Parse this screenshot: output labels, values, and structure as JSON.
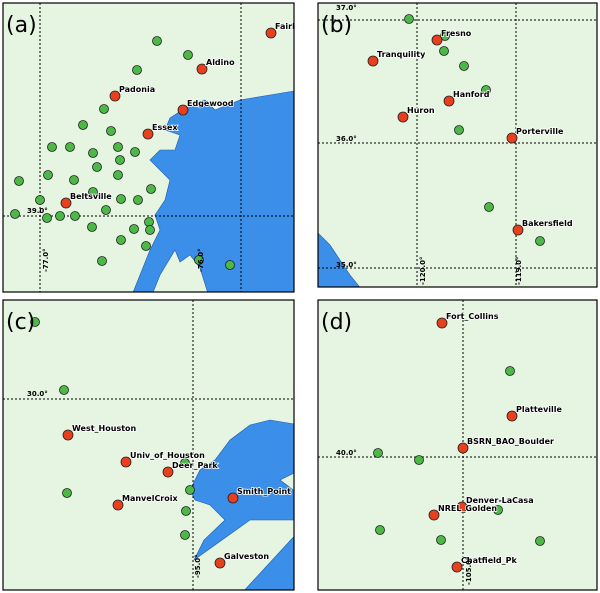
{
  "panels": [
    {
      "label": "(a)",
      "sites": [
        "Fairhill",
        "Aldino",
        "Padonia",
        "Edgewood",
        "Essex",
        "Beltsville"
      ],
      "grid_labels": [
        "39.0°",
        "-77.0°",
        "-76.0°"
      ]
    },
    {
      "label": "(b)",
      "sites": [
        "Fresno",
        "Tranquility",
        "Hanford",
        "Huron",
        "Porterville",
        "Bakersfield"
      ],
      "grid_labels": [
        "37.0°",
        "36.0°",
        "35.0°",
        "-120.0°",
        "-119.0°"
      ]
    },
    {
      "label": "(c)",
      "sites": [
        "West_Houston",
        "Univ_of_Houston",
        "Deer_Park",
        "Smith_Point",
        "ManvelCroix",
        "Galveston"
      ],
      "grid_labels": [
        "30.0°",
        "-95.0°"
      ]
    },
    {
      "label": "(d)",
      "sites": [
        "Fort_Collins",
        "Platteville",
        "BSRN_BAO_Boulder",
        "Denver-LaCasa",
        "NREL_Golden",
        "Chatfield_Pk"
      ],
      "grid_labels": [
        "40.0°",
        "-105.0°"
      ]
    }
  ]
}
